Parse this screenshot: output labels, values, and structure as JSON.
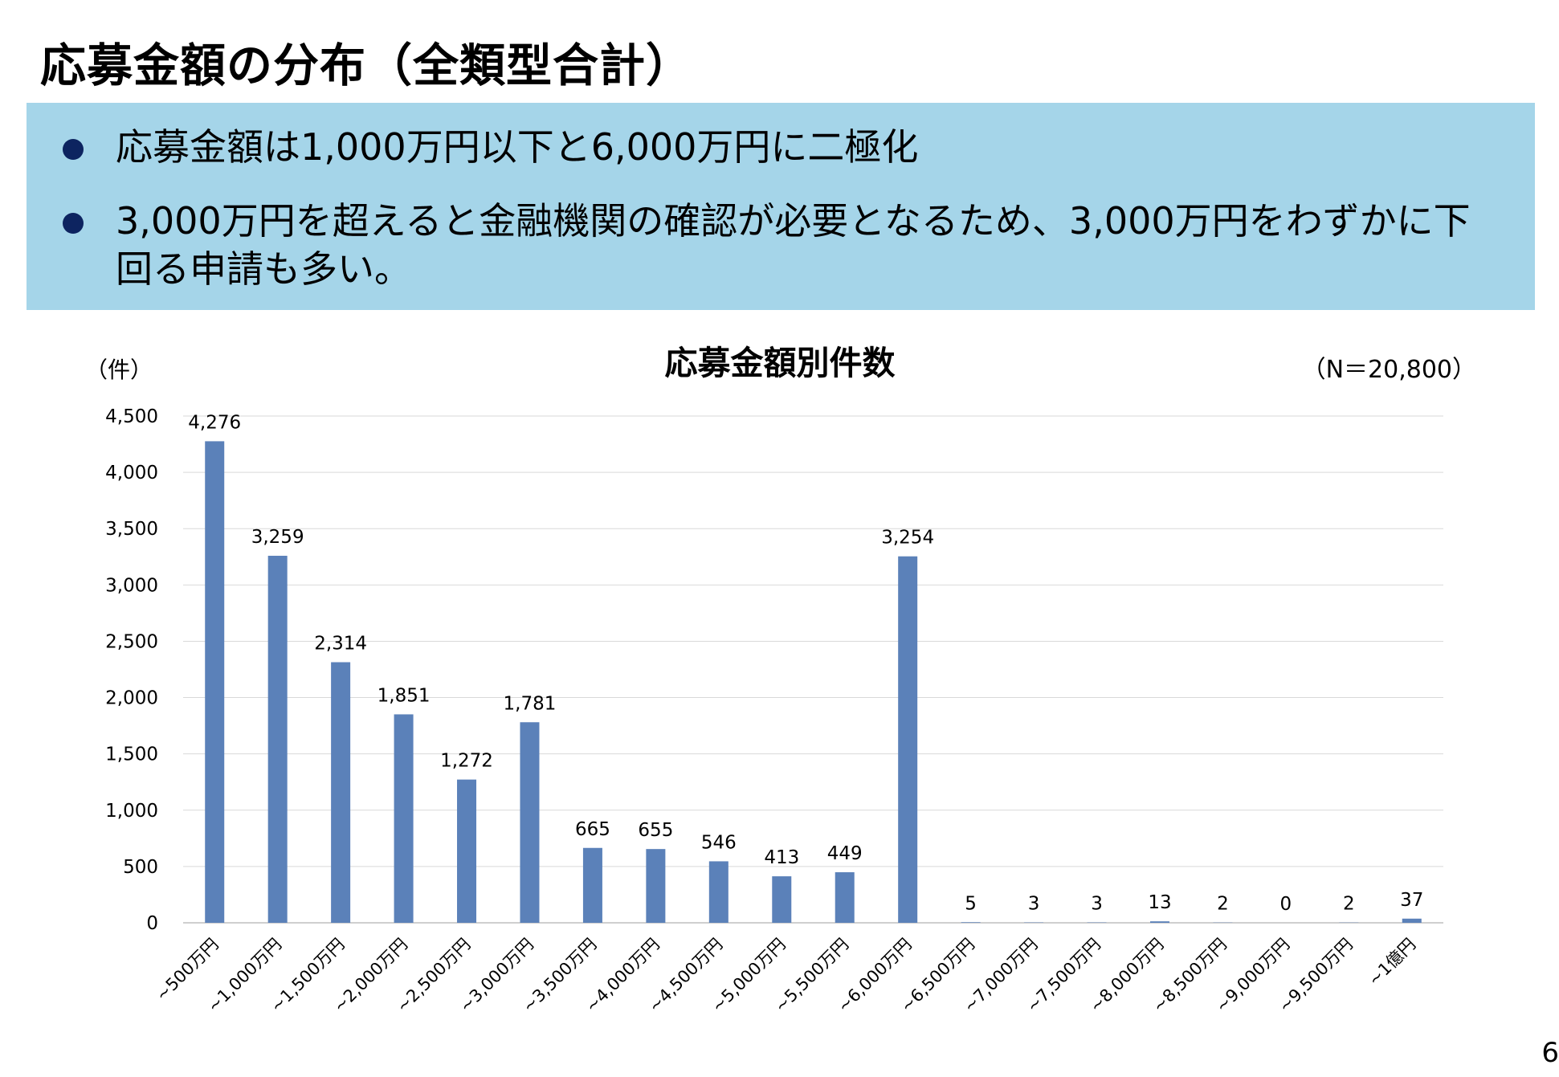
{
  "slide": {
    "title": "応募金額の分布（全類型合計）",
    "bullets": [
      "応募金額は1,000万円以下と6,000万円に二極化",
      "3,000万円を超えると金融機関の確認が必要となるため、3,000万円をわずかに下回る申請も多い。"
    ],
    "page_number": "6"
  },
  "chart_data": {
    "type": "bar",
    "title": "応募金額別件数",
    "ylabel": "（件）",
    "note": "（N＝20,800）",
    "categories": [
      "~500万円",
      "~1,000万円",
      "~1,500万円",
      "~2,000万円",
      "~2,500万円",
      "~3,000万円",
      "~3,500万円",
      "~4,000万円",
      "~4,500万円",
      "~5,000万円",
      "~5,500万円",
      "~6,000万円",
      "~6,500万円",
      "~7,000万円",
      "~7,500万円",
      "~8,000万円",
      "~8,500万円",
      "~9,000万円",
      "~9,500万円",
      "~1億円"
    ],
    "values": [
      4276,
      3259,
      2314,
      1851,
      1272,
      1781,
      665,
      655,
      546,
      413,
      449,
      3254,
      5,
      3,
      3,
      13,
      2,
      0,
      2,
      37
    ],
    "data_labels": [
      "4,276",
      "3,259",
      "2,314",
      "1,851",
      "1,272",
      "1,781",
      "665",
      "655",
      "546",
      "413",
      "449",
      "3,254",
      "5",
      "3",
      "3",
      "13",
      "2",
      "0",
      "2",
      "37"
    ],
    "yticks": [
      0,
      500,
      1000,
      1500,
      2000,
      2500,
      3000,
      3500,
      4000,
      4500
    ],
    "ytick_labels": [
      "0",
      "500",
      "1,000",
      "1,500",
      "2,000",
      "2,500",
      "3,000",
      "3,500",
      "4,000",
      "4,500"
    ],
    "ylim": [
      0,
      4500
    ],
    "grid": true,
    "bar_color": "#5b81b9"
  }
}
